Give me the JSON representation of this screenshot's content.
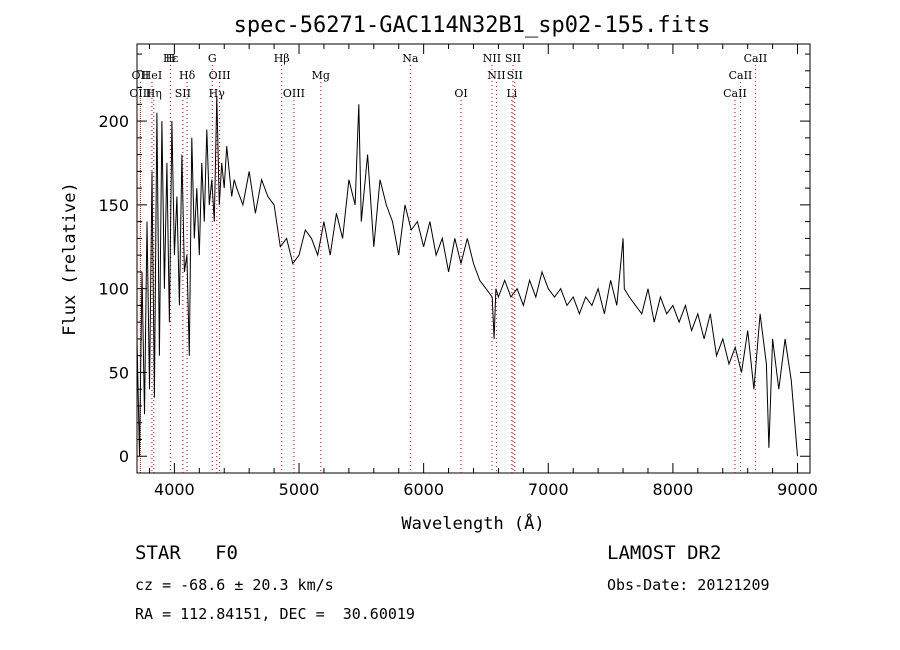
{
  "chart_data": {
    "type": "line",
    "title": "spec-56271-GAC114N32B1_sp02-155.fits",
    "xlabel": "Wavelength (Å)",
    "ylabel": "Flux (relative)",
    "xlim": [
      3700,
      9100
    ],
    "ylim": [
      -10,
      246
    ],
    "xticks": [
      4000,
      5000,
      6000,
      7000,
      8000,
      9000
    ],
    "yticks": [
      0,
      50,
      100,
      150,
      200
    ],
    "grid": false,
    "series": [
      {
        "x": [
          3700,
          3720,
          3740,
          3760,
          3780,
          3800,
          3820,
          3840,
          3860,
          3880,
          3900,
          3920,
          3940,
          3960,
          3980,
          4000,
          4020,
          4040,
          4060,
          4080,
          4100,
          4120,
          4140,
          4160,
          4180,
          4200,
          4220,
          4240,
          4260,
          4280,
          4300,
          4320,
          4340,
          4360,
          4380,
          4400,
          4420,
          4440,
          4460,
          4480,
          4500,
          4550,
          4600,
          4650,
          4700,
          4750,
          4800,
          4850,
          4900,
          4950,
          5000,
          5050,
          5100,
          5150,
          5200,
          5250,
          5300,
          5350,
          5400,
          5450,
          5480,
          5500,
          5550,
          5600,
          5650,
          5700,
          5750,
          5800,
          5850,
          5900,
          5950,
          6000,
          6050,
          6100,
          6150,
          6200,
          6250,
          6300,
          6350,
          6400,
          6450,
          6500,
          6550,
          6565,
          6580,
          6600,
          6650,
          6700,
          6750,
          6800,
          6850,
          6900,
          6950,
          7000,
          7050,
          7100,
          7150,
          7200,
          7250,
          7300,
          7350,
          7400,
          7450,
          7500,
          7550,
          7600,
          7610,
          7650,
          7700,
          7750,
          7800,
          7850,
          7900,
          7950,
          8000,
          8050,
          8100,
          8150,
          8200,
          8250,
          8300,
          8350,
          8400,
          8450,
          8500,
          8550,
          8600,
          8650,
          8700,
          8750,
          8770,
          8800,
          8850,
          8900,
          8950,
          9000
        ],
        "y": [
          70,
          0,
          110,
          25,
          140,
          40,
          170,
          35,
          205,
          60,
          200,
          100,
          175,
          80,
          200,
          120,
          155,
          90,
          180,
          110,
          120,
          60,
          190,
          130,
          160,
          120,
          175,
          140,
          195,
          150,
          165,
          140,
          215,
          150,
          175,
          160,
          185,
          170,
          155,
          165,
          160,
          150,
          170,
          145,
          165,
          155,
          150,
          125,
          130,
          115,
          120,
          135,
          130,
          120,
          140,
          120,
          145,
          130,
          165,
          150,
          210,
          140,
          180,
          125,
          165,
          150,
          140,
          120,
          150,
          135,
          140,
          125,
          140,
          120,
          130,
          110,
          130,
          115,
          130,
          115,
          105,
          100,
          95,
          70,
          100,
          95,
          105,
          95,
          100,
          90,
          105,
          95,
          110,
          100,
          95,
          100,
          90,
          95,
          85,
          95,
          90,
          100,
          85,
          105,
          90,
          130,
          100,
          95,
          90,
          85,
          100,
          80,
          95,
          85,
          90,
          80,
          90,
          75,
          85,
          70,
          85,
          60,
          70,
          55,
          65,
          50,
          75,
          40,
          85,
          55,
          5,
          70,
          40,
          70,
          45,
          0
        ]
      }
    ],
    "line_markers": [
      {
        "label": "Hε",
        "x": 3970,
        "row": 1
      },
      {
        "label": "H",
        "x": 3968,
        "row": 1
      },
      {
        "label": "G",
        "x": 4304,
        "row": 1
      },
      {
        "label": "Hβ",
        "x": 4861,
        "row": 1
      },
      {
        "label": "Na",
        "x": 5893,
        "row": 1
      },
      {
        "label": "NII",
        "x": 6548,
        "row": 1
      },
      {
        "label": "SII",
        "x": 6717,
        "row": 1
      },
      {
        "label": "CaII",
        "x": 8662,
        "row": 1
      },
      {
        "label": "OII",
        "x": 3727,
        "row": 2
      },
      {
        "label": "HeI",
        "x": 3820,
        "row": 2
      },
      {
        "label": "Hδ",
        "x": 4102,
        "row": 2
      },
      {
        "label": "OIII",
        "x": 4363,
        "row": 2
      },
      {
        "label": "Mg",
        "x": 5175,
        "row": 2
      },
      {
        "label": "NII",
        "x": 6584,
        "row": 2
      },
      {
        "label": "SII",
        "x": 6731,
        "row": 2
      },
      {
        "label": "CaII",
        "x": 8542,
        "row": 2
      },
      {
        "label": "OIII",
        "x": 3727,
        "row": 3
      },
      {
        "label": "Hγ",
        "x": 4340,
        "row": 3
      },
      {
        "label": "Hη",
        "x": 3835,
        "row": 3
      },
      {
        "label": "SII",
        "x": 4068,
        "row": 3
      },
      {
        "label": "OIII",
        "x": 4959,
        "row": 3
      },
      {
        "label": "OI",
        "x": 6300,
        "row": 3
      },
      {
        "label": "Li",
        "x": 6708,
        "row": 3
      },
      {
        "label": "CaII",
        "x": 8498,
        "row": 3
      }
    ],
    "marker_color": "#cc0000"
  },
  "info": {
    "class_label": "STAR",
    "subclass": "F0",
    "survey": "LAMOST DR2",
    "cz": "cz = -68.6 ± 20.3 km/s",
    "obs_date": "Obs-Date: 20121209",
    "coords": "RA = 112.84151, DEC =  30.60019"
  }
}
